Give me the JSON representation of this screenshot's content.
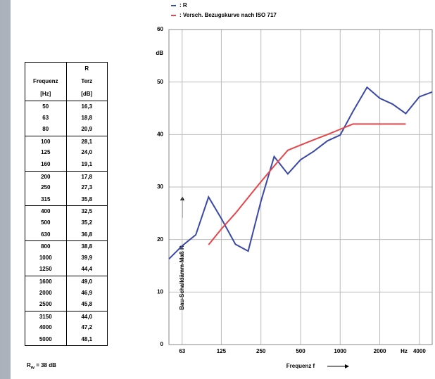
{
  "table": {
    "col1_header": [
      "Frequenz",
      "[Hz]"
    ],
    "col2_header": [
      "R",
      "Terz",
      "[dB]"
    ],
    "rows": [
      [
        "50",
        "16,3"
      ],
      [
        "63",
        "18,8"
      ],
      [
        "80",
        "20,9"
      ],
      [
        "100",
        "28,1"
      ],
      [
        "125",
        "24,0"
      ],
      [
        "160",
        "19,1"
      ],
      [
        "200",
        "17,8"
      ],
      [
        "250",
        "27,3"
      ],
      [
        "315",
        "35,8"
      ],
      [
        "400",
        "32,5"
      ],
      [
        "500",
        "35,2"
      ],
      [
        "630",
        "36,8"
      ],
      [
        "800",
        "38,8"
      ],
      [
        "1000",
        "39,9"
      ],
      [
        "1250",
        "44,4"
      ],
      [
        "1600",
        "49,0"
      ],
      [
        "2000",
        "46,9"
      ],
      [
        "2500",
        "45,8"
      ],
      [
        "3150",
        "44,0"
      ],
      [
        "4000",
        "47,2"
      ],
      [
        "5000",
        "48,1"
      ]
    ]
  },
  "footer": {
    "symbol": "R",
    "subscript": "w",
    "text": "= 38 dB"
  },
  "chart_data": {
    "type": "line",
    "x_label": "Frequenz f",
    "y_label": "Bau-Schalldämm-Maß R",
    "y_unit": "dB",
    "x_unit": "Hz",
    "x": [
      50,
      63,
      80,
      100,
      125,
      160,
      200,
      250,
      315,
      400,
      500,
      630,
      800,
      1000,
      1250,
      1600,
      2000,
      2500,
      3150,
      4000,
      5000
    ],
    "series": [
      {
        "name": ": R",
        "color": "#3a48a8",
        "values": [
          16.3,
          18.8,
          20.9,
          28.1,
          24.0,
          19.1,
          17.8,
          27.3,
          35.8,
          32.5,
          35.2,
          36.8,
          38.8,
          39.9,
          44.4,
          49.0,
          46.9,
          45.8,
          44.0,
          47.2,
          48.1
        ]
      },
      {
        "name": ": Versch. Bezugskurve nach ISO 717",
        "color": "#e8454a",
        "values": [
          null,
          null,
          null,
          19,
          22,
          25,
          28,
          31,
          34,
          37,
          38,
          39,
          40,
          41,
          42,
          42,
          42,
          42,
          42,
          null,
          null
        ]
      }
    ],
    "xlim": [
      50,
      5000
    ],
    "ylim": [
      0,
      60
    ],
    "log_x": true,
    "grid": true,
    "xticks": [
      63,
      125,
      250,
      500,
      1000,
      2000,
      4000
    ],
    "yticks": [
      0,
      10,
      20,
      30,
      40,
      50,
      60
    ]
  }
}
